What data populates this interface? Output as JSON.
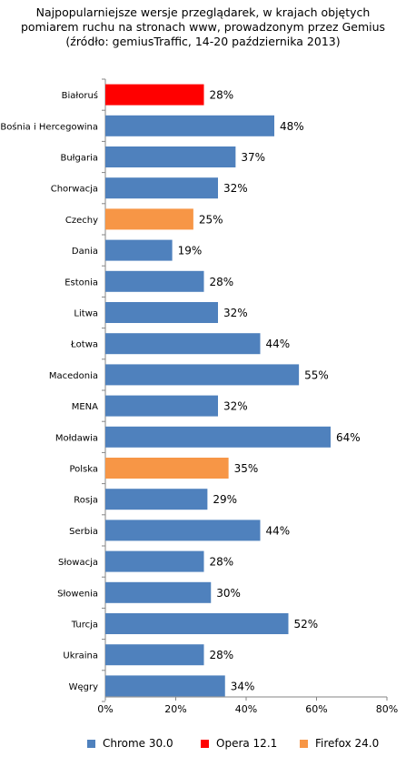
{
  "chart_data": {
    "type": "bar",
    "orientation": "horizontal",
    "title_lines": [
      "Najpopularniejsze wersje przeglądarek, w krajach objętych",
      "pomiarem ruchu na stronach www, prowadzonym przez Gemius",
      "(źródło: gemiusTraffic, 14-20 października 2013)"
    ],
    "categories": [
      "Białoruś",
      "Bośnia i Hercegowina",
      "Bułgaria",
      "Chorwacja",
      "Czechy",
      "Dania",
      "Estonia",
      "Litwa",
      "Łotwa",
      "Macedonia",
      "MENA",
      "Mołdawia",
      "Polska",
      "Rosja",
      "Serbia",
      "Słowacja",
      "Słowenia",
      "Turcja",
      "Ukraina",
      "Węgry"
    ],
    "values": [
      28,
      48,
      37,
      32,
      25,
      19,
      28,
      32,
      44,
      55,
      32,
      64,
      35,
      29,
      44,
      28,
      30,
      52,
      28,
      34
    ],
    "value_labels": [
      "28%",
      "48%",
      "37%",
      "32%",
      "25%",
      "19%",
      "28%",
      "32%",
      "44%",
      "55%",
      "32%",
      "64%",
      "35%",
      "29%",
      "44%",
      "28%",
      "30%",
      "52%",
      "28%",
      "34%"
    ],
    "browser": [
      "Opera 12.1",
      "Chrome 30.0",
      "Chrome 30.0",
      "Chrome 30.0",
      "Firefox 24.0",
      "Chrome 30.0",
      "Chrome 30.0",
      "Chrome 30.0",
      "Chrome 30.0",
      "Chrome 30.0",
      "Chrome 30.0",
      "Chrome 30.0",
      "Firefox 24.0",
      "Chrome 30.0",
      "Chrome 30.0",
      "Chrome 30.0",
      "Chrome 30.0",
      "Chrome 30.0",
      "Chrome 30.0",
      "Chrome 30.0"
    ],
    "xlim": [
      0,
      80
    ],
    "xticks": [
      0,
      20,
      40,
      60,
      80
    ],
    "xtick_labels": [
      "0%",
      "20%",
      "40%",
      "60%",
      "80%"
    ],
    "grid": false,
    "legend_position": "bottom",
    "legend": [
      {
        "name": "Chrome 30.0",
        "color": "#4f81bd"
      },
      {
        "name": "Opera 12.1",
        "color": "#ff0000"
      },
      {
        "name": "Firefox 24.0",
        "color": "#f79646"
      }
    ]
  }
}
